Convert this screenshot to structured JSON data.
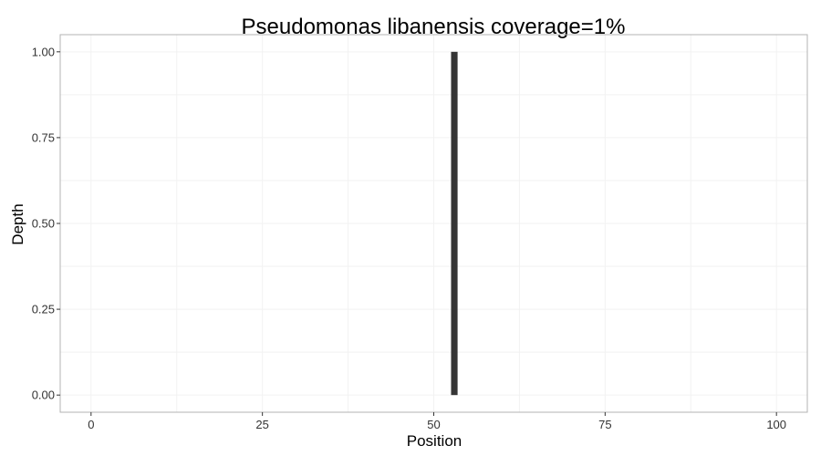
{
  "chart_data": {
    "type": "bar",
    "title": "Pseudomonas libanensis coverage=1%",
    "xlabel": "Position",
    "ylabel": "Depth",
    "xlim": [
      -4.5,
      104.5
    ],
    "ylim": [
      -0.05,
      1.05
    ],
    "x_ticks": [
      0,
      25,
      50,
      75,
      100
    ],
    "x_tick_labels": [
      "0",
      "25",
      "50",
      "75",
      "100"
    ],
    "y_ticks": [
      0,
      0.25,
      0.5,
      0.75,
      1.0
    ],
    "y_tick_labels": [
      "0.00",
      "0.25",
      "0.50",
      "0.75",
      "1.00"
    ],
    "grid": true,
    "legend": "none",
    "bar_color": "#353535",
    "grid_color": "#f2f2f2",
    "panel_border_color": "#b3b3b3",
    "bars": [
      {
        "x": 53,
        "y": 1.0
      }
    ]
  }
}
